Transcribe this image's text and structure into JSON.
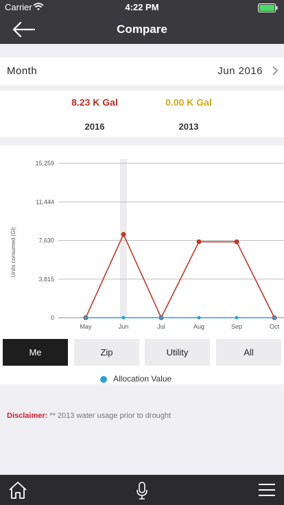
{
  "status_bar": {
    "carrier": "Carrier",
    "time": "4:22 PM"
  },
  "header": {
    "title": "Compare"
  },
  "month_selector": {
    "label": "Month",
    "value": "Jun 2016"
  },
  "summary": {
    "primary": {
      "value": "8.23 K Gal",
      "year": "2016",
      "color": "#b72f2a"
    },
    "secondary": {
      "value": "0.00 K Gal",
      "year": "2013",
      "color": "#d4a91a"
    }
  },
  "chart_data": {
    "type": "line",
    "ylabel": "Units consumed (Gl)",
    "categories": [
      "May",
      "Jun",
      "Jul",
      "Aug",
      "Sep",
      "Oct"
    ],
    "y_ticks": [
      "0",
      "3,815",
      "7,630",
      "11,444",
      "15,259"
    ],
    "ylim": [
      0,
      15259
    ],
    "highlighted_category": "Jun",
    "series": [
      {
        "color": "#c0392b",
        "values": [
          0,
          8230,
          0,
          7500,
          7500,
          0
        ]
      },
      {
        "name": "Allocation Value",
        "color": "#2a9fd8",
        "values": [
          0,
          0,
          0,
          0,
          0,
          0
        ]
      }
    ],
    "grid": true
  },
  "filters": {
    "options": [
      "Me",
      "Zip",
      "Utility",
      "All"
    ],
    "selected": "Me"
  },
  "disclaimer": {
    "label": "Disclaimer:",
    "text": " ** 2013 water usage prior to drought"
  }
}
